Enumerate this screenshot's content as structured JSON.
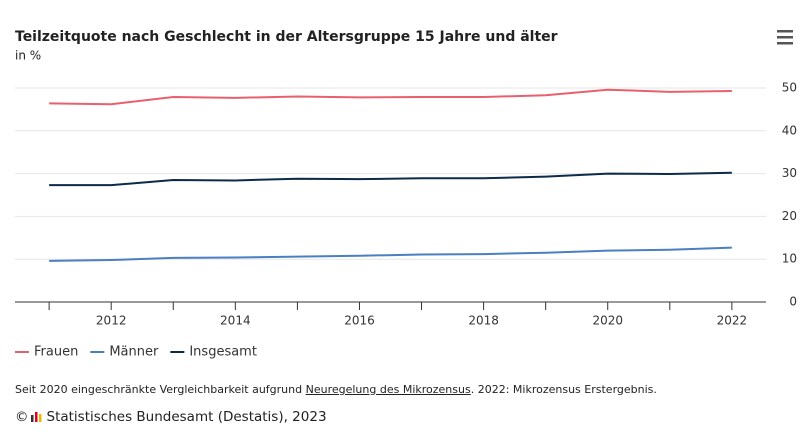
{
  "chart_data": {
    "type": "line",
    "title": "Teilzeitquote nach Geschlecht in der Altersgruppe 15 Jahre und älter",
    "subtitle": "in %",
    "x": [
      2011,
      2012,
      2013,
      2014,
      2015,
      2016,
      2017,
      2018,
      2019,
      2020,
      2021,
      2022
    ],
    "series": [
      {
        "name": "Frauen",
        "color": "#e8606e",
        "values": [
          46.4,
          46.2,
          47.9,
          47.7,
          48.0,
          47.8,
          47.9,
          47.9,
          48.3,
          49.6,
          49.1,
          49.3
        ]
      },
      {
        "name": "Männer",
        "color": "#4a7fc1",
        "values": [
          9.6,
          9.8,
          10.3,
          10.4,
          10.6,
          10.8,
          11.1,
          11.2,
          11.5,
          12.0,
          12.2,
          12.7
        ]
      },
      {
        "name": "Insgesamt",
        "color": "#0c2a4a",
        "values": [
          27.3,
          27.3,
          28.5,
          28.4,
          28.8,
          28.7,
          28.9,
          28.9,
          29.3,
          30.0,
          29.9,
          30.2
        ]
      }
    ],
    "xlim": [
      2010.45,
      2022.55
    ],
    "xticks": [
      2012,
      2014,
      2016,
      2018,
      2020,
      2022
    ],
    "xticks_minor": [
      2011,
      2013,
      2015,
      2017,
      2019,
      2021
    ],
    "ylim": [
      0,
      50
    ],
    "yticks": [
      0,
      10,
      20,
      30,
      40,
      50
    ],
    "grid": true,
    "legend": "bottom-left"
  },
  "footnote": {
    "before": "Seit 2020 eingeschränkte Vergleichbarkeit aufgrund ",
    "link": "Neuregelung des Mikrozensus",
    "after": ". 2022: Mikrozensus Erstergebnis."
  },
  "source": {
    "copyright": "©",
    "text": "Statistisches Bundesamt (Destatis), 2023"
  }
}
